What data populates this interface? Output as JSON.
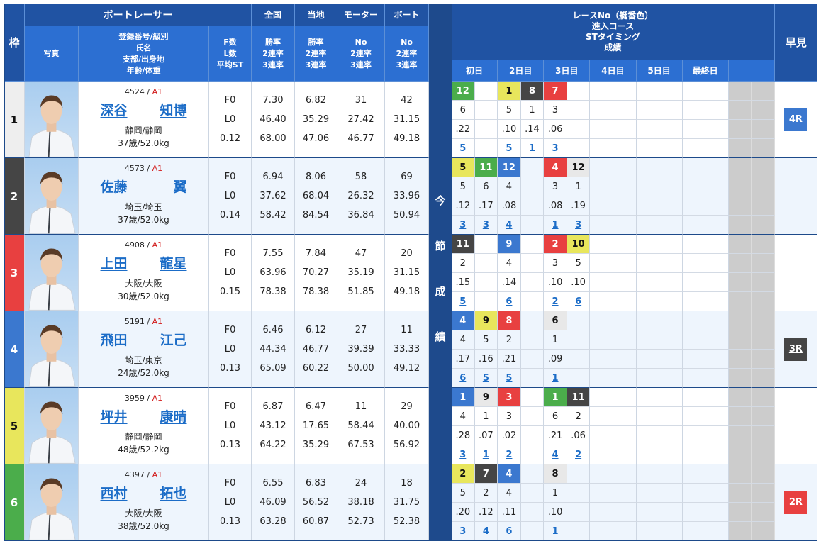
{
  "header": {
    "waku": "枠",
    "racer": "ボートレーサー",
    "national": "全国",
    "local": "当地",
    "motor": "モーター",
    "boat": "ボート",
    "photo": "写真",
    "info_lines": [
      "登録番号/級別",
      "氏名",
      "支部/出身地",
      "年齢/体重"
    ],
    "fl_lines": [
      "F数",
      "L数",
      "平均ST"
    ],
    "national_lines": [
      "勝率",
      "2連率",
      "3連率"
    ],
    "local_lines": [
      "勝率",
      "2連率",
      "3連率"
    ],
    "motor_lines": [
      "No",
      "2連率",
      "3連率"
    ],
    "boat_lines": [
      "No",
      "2連率",
      "3連率"
    ],
    "results_lines": [
      "レースNo（艇番色）",
      "進入コース",
      "STタイミング",
      "成績"
    ],
    "days": [
      "初日",
      "2日目",
      "3日目",
      "4日目",
      "5日目",
      "最終日",
      ""
    ],
    "hayami": "早見",
    "series_label": [
      "今",
      "節",
      "成",
      "績"
    ]
  },
  "colors": {
    "waku": {
      "1": {
        "bg": "#e8e8e8",
        "fg": "#111111"
      },
      "2": {
        "bg": "#454545",
        "fg": "#ffffff"
      },
      "3": {
        "bg": "#e84040",
        "fg": "#ffffff"
      },
      "4": {
        "bg": "#3b78cf",
        "fg": "#ffffff"
      },
      "5": {
        "bg": "#e8e65c",
        "fg": "#111111"
      },
      "6": {
        "bg": "#4bad4b",
        "fg": "#ffffff"
      }
    },
    "link": "#1b6cc7",
    "class_red": "#d21c1c"
  },
  "racers": [
    {
      "waku": "1",
      "reg": "4524",
      "sep": " / ",
      "class": "A1",
      "name_family": "深谷",
      "name_given": "知博",
      "branch": "静岡/静岡",
      "age_weight": "37歳/52.0kg",
      "fl": [
        "F0",
        "L0",
        "0.12"
      ],
      "national": [
        "7.30",
        "46.40",
        "68.00"
      ],
      "local": [
        "6.82",
        "35.29",
        "47.06"
      ],
      "motor": [
        "31",
        "27.42",
        "46.77"
      ],
      "boat": [
        "42",
        "31.15",
        "49.18"
      ],
      "results": [
        {
          "race": "12",
          "waku": "6",
          "course": "6",
          "st": ".22",
          "rank": "5"
        },
        null,
        {
          "race": "1",
          "waku": "5",
          "course": "5",
          "st": ".10",
          "rank": "5"
        },
        {
          "race": "8",
          "waku": "2",
          "course": "1",
          "st": ".14",
          "rank": "1"
        },
        {
          "race": "7",
          "waku": "3",
          "course": "3",
          "st": ".06",
          "rank": "3"
        },
        null,
        null,
        null,
        null,
        null,
        null,
        null
      ],
      "hayami": {
        "label": "4R",
        "waku": "4"
      }
    },
    {
      "waku": "2",
      "reg": "4573",
      "sep": " / ",
      "class": "A1",
      "name_family": "佐藤",
      "name_given": "翼",
      "branch": "埼玉/埼玉",
      "age_weight": "37歳/52.0kg",
      "fl": [
        "F0",
        "L0",
        "0.14"
      ],
      "national": [
        "6.94",
        "37.62",
        "58.42"
      ],
      "local": [
        "8.06",
        "68.04",
        "84.54"
      ],
      "motor": [
        "58",
        "26.32",
        "36.84"
      ],
      "boat": [
        "69",
        "33.96",
        "50.94"
      ],
      "results": [
        {
          "race": "5",
          "waku": "5",
          "course": "5",
          "st": ".12",
          "rank": "3"
        },
        {
          "race": "11",
          "waku": "6",
          "course": "6",
          "st": ".17",
          "rank": "3"
        },
        {
          "race": "12",
          "waku": "4",
          "course": "4",
          "st": ".08",
          "rank": "4"
        },
        null,
        {
          "race": "4",
          "waku": "3",
          "course": "3",
          "st": ".08",
          "rank": "1"
        },
        {
          "race": "12",
          "waku": "1",
          "course": "1",
          "st": ".19",
          "rank": "3"
        },
        null,
        null,
        null,
        null,
        null,
        null
      ],
      "hayami": null
    },
    {
      "waku": "3",
      "reg": "4908",
      "sep": " / ",
      "class": "A1",
      "name_family": "上田",
      "name_given": "龍星",
      "branch": "大阪/大阪",
      "age_weight": "30歳/52.0kg",
      "fl": [
        "F0",
        "L0",
        "0.15"
      ],
      "national": [
        "7.55",
        "63.96",
        "78.38"
      ],
      "local": [
        "7.84",
        "70.27",
        "78.38"
      ],
      "motor": [
        "47",
        "35.19",
        "51.85"
      ],
      "boat": [
        "20",
        "31.15",
        "49.18"
      ],
      "results": [
        {
          "race": "11",
          "waku": "2",
          "course": "2",
          "st": ".15",
          "rank": "5"
        },
        null,
        {
          "race": "9",
          "waku": "4",
          "course": "4",
          "st": ".14",
          "rank": "6"
        },
        null,
        {
          "race": "2",
          "waku": "3",
          "course": "3",
          "st": ".10",
          "rank": "2"
        },
        {
          "race": "10",
          "waku": "5",
          "course": "5",
          "st": ".10",
          "rank": "6"
        },
        null,
        null,
        null,
        null,
        null,
        null
      ],
      "hayami": null
    },
    {
      "waku": "4",
      "reg": "5191",
      "sep": " / ",
      "class": "A1",
      "name_family": "飛田",
      "name_given": "江己",
      "branch": "埼玉/東京",
      "age_weight": "24歳/52.0kg",
      "fl": [
        "F0",
        "L0",
        "0.13"
      ],
      "national": [
        "6.46",
        "44.34",
        "65.09"
      ],
      "local": [
        "6.12",
        "46.77",
        "60.22"
      ],
      "motor": [
        "27",
        "39.39",
        "50.00"
      ],
      "boat": [
        "11",
        "33.33",
        "49.12"
      ],
      "results": [
        {
          "race": "4",
          "waku": "4",
          "course": "4",
          "st": ".17",
          "rank": "6"
        },
        {
          "race": "9",
          "waku": "5",
          "course": "5",
          "st": ".16",
          "rank": "5"
        },
        {
          "race": "8",
          "waku": "3",
          "course": "2",
          "st": ".21",
          "rank": "5"
        },
        null,
        {
          "race": "6",
          "waku": "1",
          "course": "1",
          "st": ".09",
          "rank": "1"
        },
        null,
        null,
        null,
        null,
        null,
        null,
        null
      ],
      "hayami": {
        "label": "3R",
        "waku": "2"
      }
    },
    {
      "waku": "5",
      "reg": "3959",
      "sep": " / ",
      "class": "A1",
      "name_family": "坪井",
      "name_given": "康晴",
      "branch": "静岡/静岡",
      "age_weight": "48歳/52.2kg",
      "fl": [
        "F0",
        "L0",
        "0.13"
      ],
      "national": [
        "6.87",
        "43.12",
        "64.22"
      ],
      "local": [
        "6.47",
        "17.65",
        "35.29"
      ],
      "motor": [
        "11",
        "58.44",
        "67.53"
      ],
      "boat": [
        "29",
        "40.00",
        "56.92"
      ],
      "results": [
        {
          "race": "1",
          "waku": "4",
          "course": "4",
          "st": ".28",
          "rank": "3"
        },
        {
          "race": "9",
          "waku": "1",
          "course": "1",
          "st": ".07",
          "rank": "1"
        },
        {
          "race": "3",
          "waku": "3",
          "course": "3",
          "st": ".02",
          "rank": "2"
        },
        null,
        {
          "race": "1",
          "waku": "6",
          "course": "6",
          "st": ".21",
          "rank": "4"
        },
        {
          "race": "11",
          "waku": "2",
          "course": "2",
          "st": ".06",
          "rank": "2"
        },
        null,
        null,
        null,
        null,
        null,
        null
      ],
      "hayami": null
    },
    {
      "waku": "6",
      "reg": "4397",
      "sep": " / ",
      "class": "A1",
      "name_family": "西村",
      "name_given": "拓也",
      "branch": "大阪/大阪",
      "age_weight": "38歳/52.0kg",
      "fl": [
        "F0",
        "L0",
        "0.13"
      ],
      "national": [
        "6.55",
        "46.09",
        "63.28"
      ],
      "local": [
        "6.83",
        "56.52",
        "60.87"
      ],
      "motor": [
        "24",
        "38.18",
        "52.73"
      ],
      "boat": [
        "18",
        "31.75",
        "52.38"
      ],
      "results": [
        {
          "race": "2",
          "waku": "5",
          "course": "5",
          "st": ".20",
          "rank": "3"
        },
        {
          "race": "7",
          "waku": "2",
          "course": "2",
          "st": ".12",
          "rank": "4"
        },
        {
          "race": "4",
          "waku": "4",
          "course": "4",
          "st": ".11",
          "rank": "6"
        },
        null,
        {
          "race": "8",
          "waku": "1",
          "course": "1",
          "st": ".10",
          "rank": "1"
        },
        null,
        null,
        null,
        null,
        null,
        null,
        null
      ],
      "hayami": {
        "label": "2R",
        "waku": "3"
      }
    }
  ]
}
